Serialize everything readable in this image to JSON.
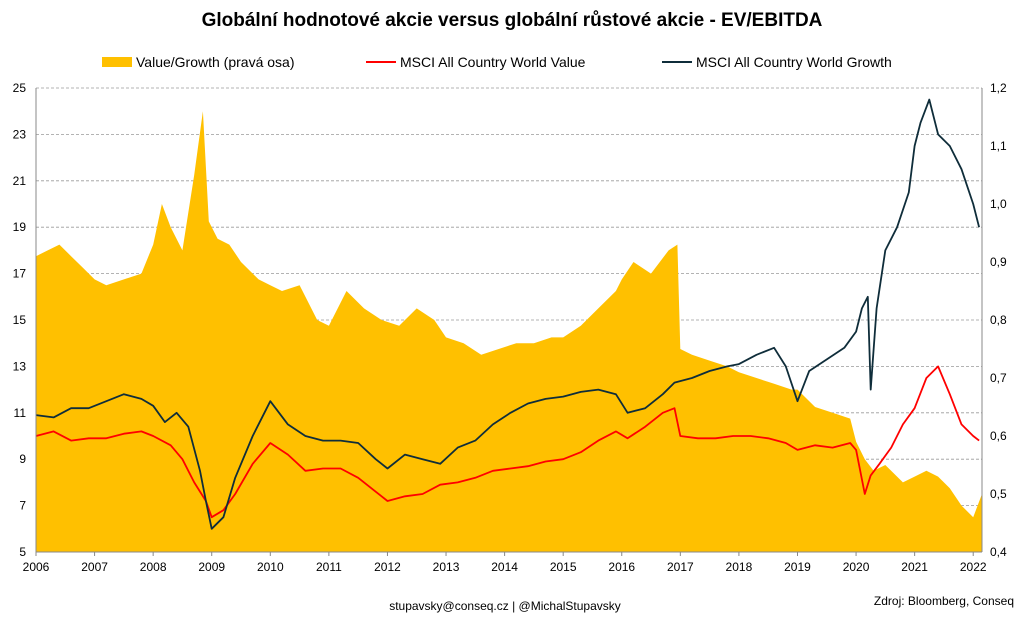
{
  "chart_data": {
    "type": "line",
    "title": "Globální hodnotové akcie versus globální růstové akcie - EV/EBITDA",
    "legend_position": "top",
    "grid": true,
    "x_ticks": [
      "2006",
      "2007",
      "2008",
      "2009",
      "2010",
      "2011",
      "2012",
      "2013",
      "2014",
      "2015",
      "2016",
      "2017",
      "2018",
      "2019",
      "2020",
      "2021",
      "2022"
    ],
    "xlim": [
      2006.0,
      2022.15
    ],
    "left_axis": {
      "ylim": [
        5,
        25
      ],
      "ticks": [
        "5",
        "7",
        "9",
        "11",
        "13",
        "15",
        "17",
        "19",
        "21",
        "23",
        "25"
      ]
    },
    "right_axis": {
      "ylim": [
        0.4,
        1.2
      ],
      "ticks": [
        "0,4",
        "0,5",
        "0,6",
        "0,7",
        "0,8",
        "0,9",
        "1,0",
        "1,1",
        "1,2"
      ]
    },
    "series": [
      {
        "name": "Value/Growth (pravá osa)",
        "kind": "area",
        "axis": "right",
        "color": "#FFC000",
        "x": [
          2006.0,
          2006.2,
          2006.4,
          2006.6,
          2006.8,
          2007.0,
          2007.2,
          2007.5,
          2007.8,
          2008.0,
          2008.15,
          2008.3,
          2008.5,
          2008.7,
          2008.85,
          2008.95,
          2009.1,
          2009.3,
          2009.5,
          2009.8,
          2010.0,
          2010.2,
          2010.5,
          2010.8,
          2011.0,
          2011.3,
          2011.6,
          2011.9,
          2012.2,
          2012.5,
          2012.8,
          2013.0,
          2013.3,
          2013.6,
          2013.9,
          2014.2,
          2014.5,
          2014.8,
          2015.0,
          2015.3,
          2015.6,
          2015.9,
          2016.0,
          2016.2,
          2016.5,
          2016.8,
          2016.95,
          2017.0,
          2017.2,
          2017.5,
          2017.8,
          2018.0,
          2018.3,
          2018.6,
          2018.9,
          2019.0,
          2019.3,
          2019.6,
          2019.9,
          2020.0,
          2020.15,
          2020.3,
          2020.5,
          2020.8,
          2021.0,
          2021.2,
          2021.4,
          2021.6,
          2021.8,
          2022.0,
          2022.15
        ],
        "values": [
          0.91,
          0.92,
          0.93,
          0.91,
          0.89,
          0.87,
          0.86,
          0.87,
          0.88,
          0.93,
          1.0,
          0.96,
          0.92,
          1.05,
          1.16,
          0.97,
          0.94,
          0.93,
          0.9,
          0.87,
          0.86,
          0.85,
          0.86,
          0.8,
          0.79,
          0.85,
          0.82,
          0.8,
          0.79,
          0.82,
          0.8,
          0.77,
          0.76,
          0.74,
          0.75,
          0.76,
          0.76,
          0.77,
          0.77,
          0.79,
          0.82,
          0.85,
          0.87,
          0.9,
          0.88,
          0.92,
          0.93,
          0.75,
          0.74,
          0.73,
          0.72,
          0.71,
          0.7,
          0.69,
          0.68,
          0.68,
          0.65,
          0.64,
          0.63,
          0.59,
          0.56,
          0.54,
          0.55,
          0.52,
          0.53,
          0.54,
          0.53,
          0.51,
          0.48,
          0.46,
          0.5
        ]
      },
      {
        "name": "MSCI All Country World Value",
        "kind": "line",
        "axis": "left",
        "color": "#FF0000",
        "x": [
          2006.0,
          2006.3,
          2006.6,
          2006.9,
          2007.2,
          2007.5,
          2007.8,
          2008.0,
          2008.3,
          2008.5,
          2008.7,
          2008.9,
          2009.0,
          2009.2,
          2009.4,
          2009.7,
          2010.0,
          2010.3,
          2010.6,
          2010.9,
          2011.2,
          2011.5,
          2011.8,
          2012.0,
          2012.3,
          2012.6,
          2012.9,
          2013.2,
          2013.5,
          2013.8,
          2014.1,
          2014.4,
          2014.7,
          2015.0,
          2015.3,
          2015.6,
          2015.9,
          2016.1,
          2016.4,
          2016.7,
          2016.9,
          2017.0,
          2017.3,
          2017.6,
          2017.9,
          2018.2,
          2018.5,
          2018.8,
          2019.0,
          2019.3,
          2019.6,
          2019.9,
          2020.0,
          2020.15,
          2020.25,
          2020.4,
          2020.6,
          2020.8,
          2021.0,
          2021.2,
          2021.4,
          2021.6,
          2021.8,
          2022.0,
          2022.1
        ],
        "values": [
          10.0,
          10.2,
          9.8,
          9.9,
          9.9,
          10.1,
          10.2,
          10.0,
          9.6,
          9.0,
          8.0,
          7.2,
          6.5,
          6.8,
          7.5,
          8.8,
          9.7,
          9.2,
          8.5,
          8.6,
          8.6,
          8.2,
          7.6,
          7.2,
          7.4,
          7.5,
          7.9,
          8.0,
          8.2,
          8.5,
          8.6,
          8.7,
          8.9,
          9.0,
          9.3,
          9.8,
          10.2,
          9.9,
          10.4,
          11.0,
          11.2,
          10.0,
          9.9,
          9.9,
          10.0,
          10.0,
          9.9,
          9.7,
          9.4,
          9.6,
          9.5,
          9.7,
          9.4,
          7.5,
          8.3,
          8.8,
          9.5,
          10.5,
          11.2,
          12.5,
          13.0,
          11.8,
          10.5,
          10.0,
          9.8
        ]
      },
      {
        "name": "MSCI All Country World Growth",
        "kind": "line",
        "axis": "left",
        "color": "#0F2D3A",
        "x": [
          2006.0,
          2006.3,
          2006.6,
          2006.9,
          2007.2,
          2007.5,
          2007.8,
          2008.0,
          2008.2,
          2008.4,
          2008.6,
          2008.8,
          2008.9,
          2009.0,
          2009.2,
          2009.4,
          2009.7,
          2010.0,
          2010.3,
          2010.6,
          2010.9,
          2011.2,
          2011.5,
          2011.8,
          2012.0,
          2012.3,
          2012.6,
          2012.9,
          2013.2,
          2013.5,
          2013.8,
          2014.1,
          2014.4,
          2014.7,
          2015.0,
          2015.3,
          2015.6,
          2015.9,
          2016.1,
          2016.4,
          2016.7,
          2016.9,
          2017.2,
          2017.5,
          2017.8,
          2018.0,
          2018.3,
          2018.6,
          2018.8,
          2019.0,
          2019.2,
          2019.5,
          2019.8,
          2020.0,
          2020.1,
          2020.2,
          2020.25,
          2020.35,
          2020.5,
          2020.7,
          2020.9,
          2021.0,
          2021.1,
          2021.25,
          2021.4,
          2021.6,
          2021.8,
          2022.0,
          2022.1
        ],
        "values": [
          10.9,
          10.8,
          11.2,
          11.2,
          11.5,
          11.8,
          11.6,
          11.3,
          10.6,
          11.0,
          10.4,
          8.5,
          7.2,
          6.0,
          6.5,
          8.2,
          10.0,
          11.5,
          10.5,
          10.0,
          9.8,
          9.8,
          9.7,
          9.0,
          8.6,
          9.2,
          9.0,
          8.8,
          9.5,
          9.8,
          10.5,
          11.0,
          11.4,
          11.6,
          11.7,
          11.9,
          12.0,
          11.8,
          11.0,
          11.2,
          11.8,
          12.3,
          12.5,
          12.8,
          13.0,
          13.1,
          13.5,
          13.8,
          13.0,
          11.5,
          12.8,
          13.3,
          13.8,
          14.5,
          15.5,
          16.0,
          12.0,
          15.5,
          18.0,
          19.0,
          20.5,
          22.5,
          23.5,
          24.5,
          23.0,
          22.5,
          21.5,
          20.0,
          19.0
        ]
      }
    ]
  },
  "footer": {
    "contact": "stupavsky@conseq.cz  |  @MichalStupavsky",
    "source": "Zdroj: Bloomberg, Conseq"
  }
}
